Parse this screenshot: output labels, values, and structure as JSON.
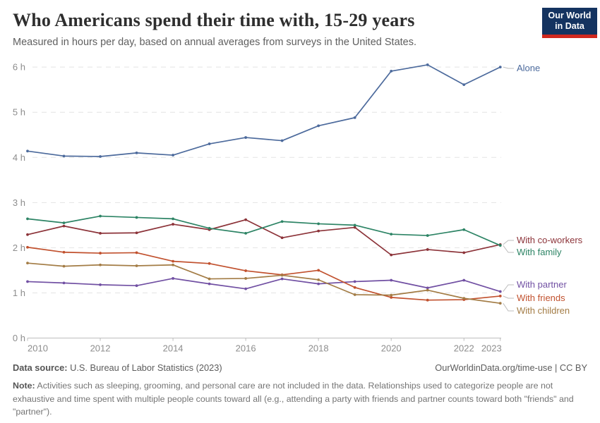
{
  "header": {
    "title": "Who Americans spend their time with, 15-29 years",
    "subtitle": "Measured in hours per day, based on annual averages from surveys in the United States."
  },
  "logo": {
    "line1": "Our World",
    "line2": "in Data",
    "bg_color": "#143360",
    "accent_color": "#d0281e"
  },
  "chart_data": {
    "type": "line",
    "title": "Who Americans spend their time with, 15-29 years",
    "xlabel": "",
    "ylabel": "hours per day",
    "x": [
      2010,
      2011,
      2012,
      2013,
      2014,
      2015,
      2016,
      2017,
      2018,
      2019,
      2020,
      2021,
      2022,
      2023
    ],
    "x_tick_labels": [
      "2010",
      "2012",
      "2014",
      "2016",
      "2018",
      "2020",
      "2022",
      "2023"
    ],
    "y_tick_labels": [
      "0 h",
      "1 h",
      "2 h",
      "3 h",
      "4 h",
      "5 h",
      "6 h"
    ],
    "ylim": [
      0,
      6
    ],
    "xlim": [
      2010,
      2023
    ],
    "grid": "horizontal-dashed",
    "legend_position": "right-edge-labels",
    "series": [
      {
        "name": "Alone",
        "color": "#4C6A9C",
        "values": [
          4.14,
          4.03,
          4.02,
          4.1,
          4.05,
          4.3,
          4.44,
          4.37,
          4.7,
          4.88,
          5.91,
          6.05,
          5.61,
          6.0
        ]
      },
      {
        "name": "With co-workers",
        "color": "#8C3339",
        "values": [
          2.29,
          2.48,
          2.32,
          2.33,
          2.52,
          2.4,
          2.62,
          2.22,
          2.37,
          2.45,
          1.84,
          1.96,
          1.89,
          2.07
        ]
      },
      {
        "name": "With family",
        "color": "#2D8465",
        "values": [
          2.64,
          2.55,
          2.7,
          2.67,
          2.64,
          2.43,
          2.32,
          2.58,
          2.53,
          2.5,
          2.3,
          2.27,
          2.4,
          2.05
        ]
      },
      {
        "name": "With partner",
        "color": "#7150A3",
        "values": [
          1.25,
          1.22,
          1.18,
          1.16,
          1.32,
          1.2,
          1.09,
          1.31,
          1.2,
          1.25,
          1.28,
          1.11,
          1.28,
          1.03
        ]
      },
      {
        "name": "With friends",
        "color": "#C1512E",
        "values": [
          2.01,
          1.9,
          1.88,
          1.89,
          1.7,
          1.65,
          1.49,
          1.4,
          1.5,
          1.12,
          0.9,
          0.84,
          0.85,
          0.93
        ]
      },
      {
        "name": "With children",
        "color": "#A37C45",
        "values": [
          1.66,
          1.59,
          1.62,
          1.6,
          1.62,
          1.31,
          1.32,
          1.39,
          1.29,
          0.96,
          0.95,
          1.06,
          0.88,
          0.77
        ]
      }
    ]
  },
  "footer": {
    "source_label": "Data source:",
    "source_text": " U.S. Bureau of Labor Statistics (2023)",
    "link": "OurWorldinData.org/time-use | CC BY",
    "note_label": "Note:",
    "note_text": " Activities such as sleeping, grooming, and personal care are not included in the data. Relationships used to categorize people are not exhaustive and time spent with multiple people counts toward all (e.g., attending a party with friends and partner counts toward both \"friends\" and \"partner\")."
  }
}
